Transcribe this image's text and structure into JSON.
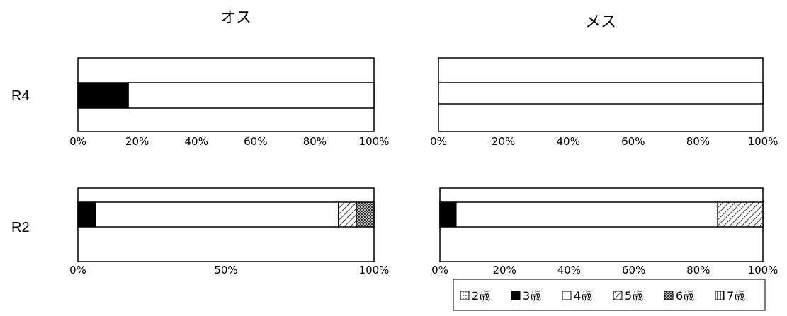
{
  "chart_data": [
    {
      "type": "bar",
      "orientation": "horizontal",
      "stacked": "percent",
      "title": "オス",
      "row_label": "R4",
      "xticks": [
        "0%",
        "20%",
        "40%",
        "60%",
        "80%",
        "100%"
      ],
      "xlim": [
        0,
        100
      ],
      "series": [
        {
          "name": "2歳",
          "values": [
            0
          ]
        },
        {
          "name": "3歳",
          "values": [
            17
          ]
        },
        {
          "name": "4歳",
          "values": [
            83
          ]
        },
        {
          "name": "5歳",
          "values": [
            0
          ]
        },
        {
          "name": "6歳",
          "values": [
            0
          ]
        },
        {
          "name": "7歳",
          "values": [
            0
          ]
        }
      ]
    },
    {
      "type": "bar",
      "orientation": "horizontal",
      "stacked": "percent",
      "title": "メス",
      "row_label": "R4",
      "xticks": [
        "0%",
        "20%",
        "40%",
        "60%",
        "80%",
        "100%"
      ],
      "xlim": [
        0,
        100
      ],
      "series": [
        {
          "name": "2歳",
          "values": [
            0
          ]
        },
        {
          "name": "3歳",
          "values": [
            0
          ]
        },
        {
          "name": "4歳",
          "values": [
            100
          ]
        },
        {
          "name": "5歳",
          "values": [
            0
          ]
        },
        {
          "name": "6歳",
          "values": [
            0
          ]
        },
        {
          "name": "7歳",
          "values": [
            0
          ]
        }
      ]
    },
    {
      "type": "bar",
      "orientation": "horizontal",
      "stacked": "percent",
      "title": "",
      "row_label": "R2",
      "xticks": [
        "0%",
        "50%",
        "100%"
      ],
      "xlim": [
        0,
        100
      ],
      "series": [
        {
          "name": "2歳",
          "values": [
            0
          ]
        },
        {
          "name": "3歳",
          "values": [
            6
          ]
        },
        {
          "name": "4歳",
          "values": [
            82
          ]
        },
        {
          "name": "5歳",
          "values": [
            6
          ]
        },
        {
          "name": "6歳",
          "values": [
            6
          ]
        },
        {
          "name": "7歳",
          "values": [
            0
          ]
        }
      ]
    },
    {
      "type": "bar",
      "orientation": "horizontal",
      "stacked": "percent",
      "title": "",
      "row_label": "R2",
      "xticks": [
        "0%",
        "20%",
        "40%",
        "60%",
        "80%",
        "100%"
      ],
      "xlim": [
        0,
        100
      ],
      "series": [
        {
          "name": "2歳",
          "values": [
            0
          ]
        },
        {
          "name": "3歳",
          "values": [
            5
          ]
        },
        {
          "name": "4歳",
          "values": [
            81
          ]
        },
        {
          "name": "5歳",
          "values": [
            14
          ]
        },
        {
          "name": "6歳",
          "values": [
            0
          ]
        },
        {
          "name": "7歳",
          "values": [
            0
          ]
        }
      ]
    }
  ],
  "legend": {
    "position": "bottom-right",
    "items": [
      {
        "name": "2歳",
        "symbol": "□"
      },
      {
        "name": "3歳",
        "symbol": "■"
      },
      {
        "name": "4歳",
        "symbol": "□"
      },
      {
        "name": "5歳",
        "symbol": "▧"
      },
      {
        "name": "6歳",
        "symbol": "▩"
      },
      {
        "name": "7歳",
        "symbol": "▥"
      }
    ]
  },
  "series_styles": {
    "2歳": {
      "fill": "#ffffff",
      "pattern": "dots"
    },
    "3歳": {
      "fill": "#000000",
      "pattern": "solid"
    },
    "4歳": {
      "fill": "#ffffff",
      "pattern": "none"
    },
    "5歳": {
      "fill": "#ffffff",
      "pattern": "diagonal"
    },
    "6歳": {
      "fill": "#ffffff",
      "pattern": "crosshatch"
    },
    "7歳": {
      "fill": "#ffffff",
      "pattern": "vertical"
    }
  }
}
